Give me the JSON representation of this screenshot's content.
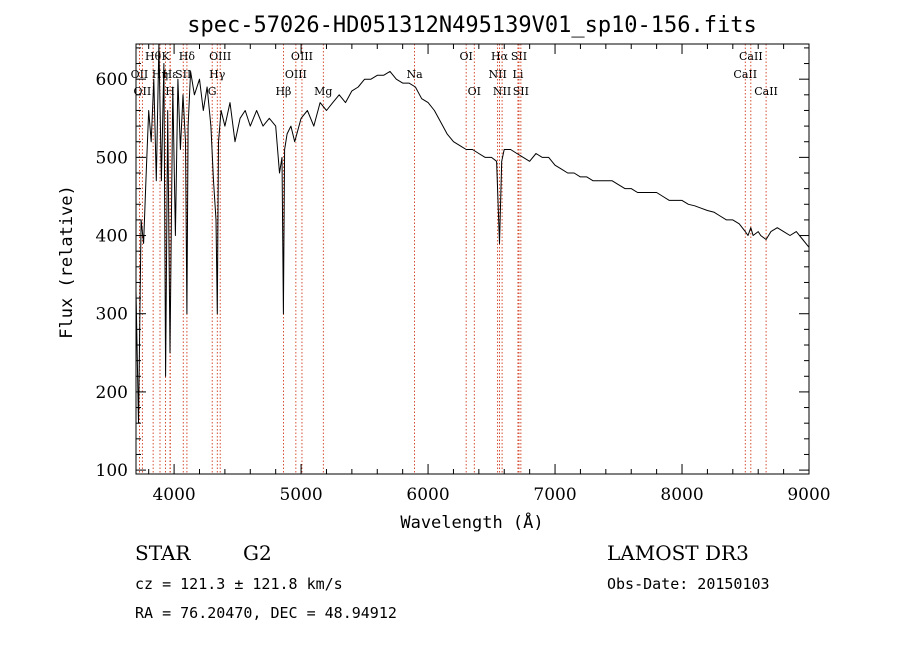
{
  "chart_data": {
    "type": "line",
    "title": "spec-57026-HD051312N495139V01_sp10-156.fits",
    "xlabel": "Wavelength (Å)",
    "ylabel": "Flux (relative)",
    "xlim": [
      3700,
      9000
    ],
    "ylim": [
      95,
      645
    ],
    "xticks": [
      4000,
      5000,
      6000,
      7000,
      8000,
      9000
    ],
    "yticks": [
      100,
      200,
      300,
      400,
      500,
      600
    ],
    "grid": false,
    "series": [
      {
        "name": "spectrum",
        "x": [
          3700,
          3720,
          3740,
          3760,
          3780,
          3800,
          3820,
          3840,
          3860,
          3880,
          3900,
          3920,
          3933,
          3950,
          3968,
          3990,
          4010,
          4030,
          4050,
          4070,
          4090,
          4101,
          4110,
          4130,
          4160,
          4200,
          4230,
          4260,
          4290,
          4310,
          4330,
          4340,
          4350,
          4370,
          4400,
          4440,
          4480,
          4520,
          4560,
          4600,
          4650,
          4700,
          4750,
          4800,
          4830,
          4850,
          4861,
          4870,
          4890,
          4920,
          4950,
          5000,
          5050,
          5100,
          5150,
          5200,
          5250,
          5300,
          5350,
          5400,
          5450,
          5500,
          5550,
          5600,
          5650,
          5700,
          5750,
          5800,
          5850,
          5900,
          5950,
          6000,
          6050,
          6100,
          6150,
          6200,
          6250,
          6300,
          6350,
          6400,
          6450,
          6500,
          6540,
          6563,
          6580,
          6600,
          6650,
          6700,
          6750,
          6800,
          6850,
          6900,
          6950,
          7000,
          7050,
          7100,
          7150,
          7200,
          7250,
          7300,
          7350,
          7400,
          7450,
          7500,
          7550,
          7600,
          7650,
          7700,
          7750,
          7800,
          7850,
          7900,
          7950,
          8000,
          8050,
          8100,
          8150,
          8200,
          8250,
          8300,
          8350,
          8400,
          8450,
          8498,
          8520,
          8542,
          8560,
          8600,
          8620,
          8662,
          8700,
          8750,
          8800,
          8850,
          8900,
          8950,
          9000
        ],
        "y": [
          330,
          160,
          420,
          390,
          480,
          560,
          520,
          600,
          470,
          650,
          470,
          620,
          220,
          560,
          250,
          590,
          400,
          600,
          510,
          580,
          520,
          300,
          540,
          610,
          580,
          600,
          560,
          590,
          540,
          470,
          420,
          300,
          520,
          560,
          540,
          570,
          520,
          550,
          560,
          540,
          560,
          540,
          550,
          540,
          480,
          500,
          300,
          510,
          530,
          540,
          520,
          550,
          560,
          540,
          570,
          560,
          570,
          580,
          570,
          585,
          590,
          600,
          600,
          605,
          605,
          610,
          600,
          595,
          595,
          590,
          575,
          570,
          560,
          545,
          530,
          520,
          515,
          510,
          510,
          505,
          500,
          500,
          495,
          390,
          495,
          510,
          510,
          505,
          500,
          495,
          505,
          500,
          500,
          490,
          485,
          480,
          480,
          475,
          475,
          470,
          470,
          470,
          470,
          465,
          460,
          460,
          455,
          455,
          455,
          455,
          450,
          445,
          445,
          445,
          440,
          438,
          435,
          432,
          430,
          425,
          420,
          420,
          415,
          405,
          400,
          410,
          400,
          405,
          400,
          395,
          405,
          410,
          405,
          400,
          405,
          395,
          385
        ]
      }
    ],
    "line_marks": [
      {
        "wl": 3727,
        "label": "OII",
        "row": 2
      },
      {
        "wl": 3750,
        "label": "OII",
        "row": 3
      },
      {
        "wl": 3835,
        "label": "Hθ",
        "row": 1
      },
      {
        "wl": 3889,
        "label": "Hη",
        "row": 2
      },
      {
        "wl": 3933,
        "label": "K",
        "row": 1
      },
      {
        "wl": 3968,
        "label": "H",
        "row": 3
      },
      {
        "wl": 3970,
        "label": "Hε",
        "row": 2
      },
      {
        "wl": 4072,
        "label": "SII",
        "row": 2
      },
      {
        "wl": 4101,
        "label": "Hδ",
        "row": 1
      },
      {
        "wl": 4300,
        "label": "G",
        "row": 3
      },
      {
        "wl": 4340,
        "label": "Hγ",
        "row": 2
      },
      {
        "wl": 4363,
        "label": "OIII",
        "row": 1
      },
      {
        "wl": 4861,
        "label": "Hβ",
        "row": 3
      },
      {
        "wl": 4959,
        "label": "OIII",
        "row": 2
      },
      {
        "wl": 5007,
        "label": "OIII",
        "row": 1
      },
      {
        "wl": 5175,
        "label": "Mg",
        "row": 3
      },
      {
        "wl": 5894,
        "label": "Na",
        "row": 2
      },
      {
        "wl": 6300,
        "label": "OI",
        "row": 1
      },
      {
        "wl": 6364,
        "label": "OI",
        "row": 3
      },
      {
        "wl": 6548,
        "label": "NII",
        "row": 2
      },
      {
        "wl": 6563,
        "label": "Hα",
        "row": 1
      },
      {
        "wl": 6583,
        "label": "NII",
        "row": 3
      },
      {
        "wl": 6708,
        "label": "Li",
        "row": 2
      },
      {
        "wl": 6716,
        "label": "SII",
        "row": 1
      },
      {
        "wl": 6731,
        "label": "SII",
        "row": 3
      },
      {
        "wl": 8498,
        "label": "CaII",
        "row": 2
      },
      {
        "wl": 8542,
        "label": "CaII",
        "row": 1
      },
      {
        "wl": 8662,
        "label": "CaII",
        "row": 3
      }
    ]
  },
  "info": {
    "class": "STAR",
    "subclass": "G2",
    "survey": "LAMOST DR3",
    "cz": "cz = 121.3 ± 121.8 km/s",
    "obsdate": "Obs-Date: 20150103",
    "radec": "RA =  76.20470, DEC =  48.94912"
  },
  "colors": {
    "line_mark": "#cc2200",
    "spectrum": "#000000"
  }
}
